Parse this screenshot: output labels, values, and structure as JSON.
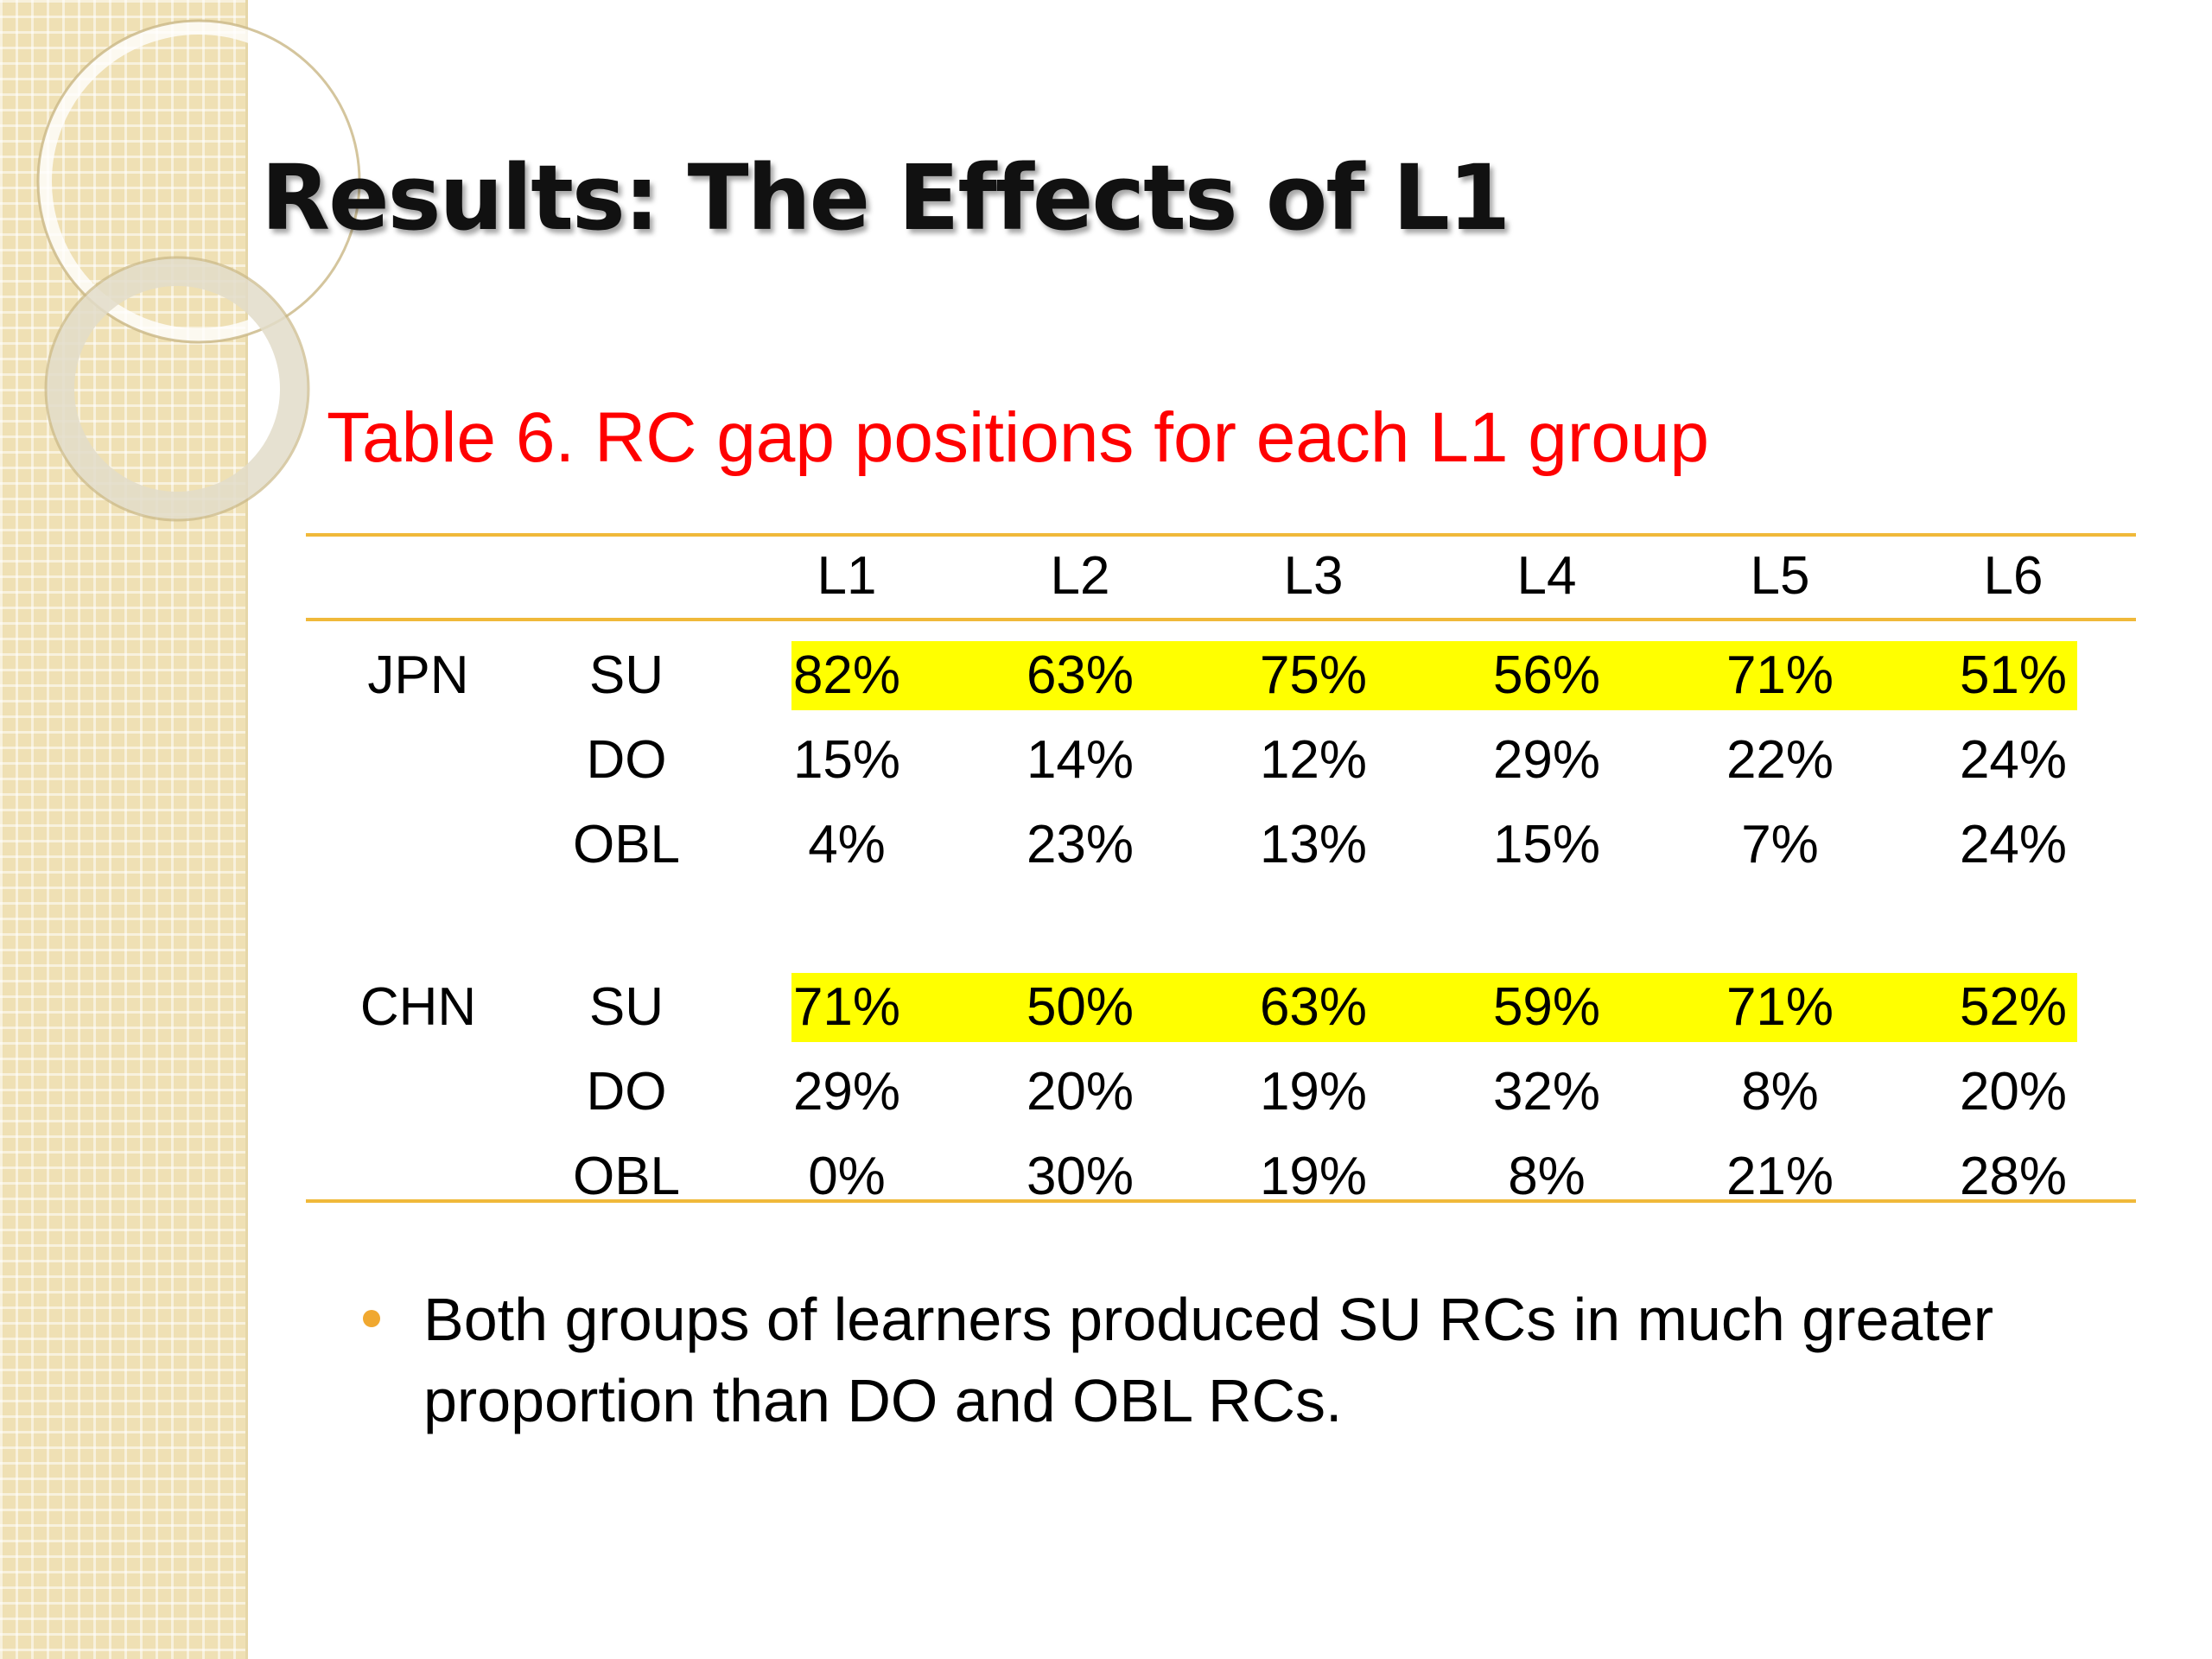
{
  "slide": {
    "title": "Results: The Effects of L1",
    "caption": "Table 6. RC gap positions for each L1 group"
  },
  "table": {
    "columns": [
      "L1",
      "L2",
      "L3",
      "L4",
      "L5",
      "L6"
    ],
    "groups": [
      {
        "name": "JPN",
        "rows": [
          {
            "label": "SU",
            "highlighted": true,
            "values": [
              "82%",
              "63%",
              "75%",
              "56%",
              "71%",
              "51%"
            ]
          },
          {
            "label": "DO",
            "highlighted": false,
            "values": [
              "15%",
              "14%",
              "12%",
              "29%",
              "22%",
              "24%"
            ]
          },
          {
            "label": "OBL",
            "highlighted": false,
            "values": [
              "4%",
              "23%",
              "13%",
              "15%",
              "7%",
              "24%"
            ]
          }
        ]
      },
      {
        "name": "CHN",
        "rows": [
          {
            "label": "SU",
            "highlighted": true,
            "values": [
              "71%",
              "50%",
              "63%",
              "59%",
              "71%",
              "52%"
            ]
          },
          {
            "label": "DO",
            "highlighted": false,
            "values": [
              "29%",
              "20%",
              "19%",
              "32%",
              "8%",
              "20%"
            ]
          },
          {
            "label": "OBL",
            "highlighted": false,
            "values": [
              "0%",
              "30%",
              "19%",
              "8%",
              "21%",
              "28%"
            ]
          }
        ]
      }
    ]
  },
  "bullets": [
    "Both groups of learners produced SU RCs in much greater proportion than DO and OBL RCs."
  ],
  "colors": {
    "highlight": "#ffff00",
    "caption": "#ff0000",
    "rule": "#f0b93a",
    "bullet": "#f0a830",
    "sidebar": "#efe0b4"
  }
}
